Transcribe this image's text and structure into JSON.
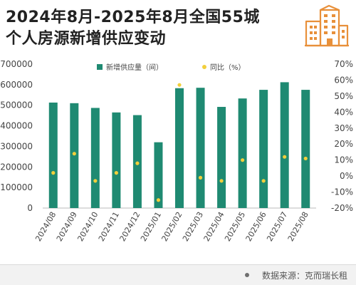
{
  "title": {
    "line1": "2024年8月-2025年8月全国55城",
    "line2": "个人房源新增供应变动"
  },
  "source": "数据来源：克而瑞长租",
  "colors": {
    "bar": "#1f8a72",
    "point": "#f2cf3c",
    "logo": "#e8903a",
    "axis_text": "#444444",
    "grid": "#dddddd"
  },
  "icons": {
    "logo": "building-icon",
    "footer": "dot-icon"
  },
  "chart_data": {
    "type": "bar",
    "categories": [
      "2024/08",
      "2024/09",
      "2024/10",
      "2024/11",
      "2024/12",
      "2025/01",
      "2025/02",
      "2025/03",
      "2025/04",
      "2025/05",
      "2025/06",
      "2025/07",
      "2025/08"
    ],
    "series": [
      {
        "name": "新增供应量（间）",
        "type": "bar",
        "axis": "left",
        "values": [
          513000,
          510000,
          487000,
          465000,
          452000,
          320000,
          583000,
          585000,
          492000,
          533000,
          575000,
          612000,
          575000
        ]
      },
      {
        "name": "同比（%）",
        "type": "scatter",
        "axis": "right",
        "values": [
          2,
          14,
          -3,
          2,
          8,
          -15,
          57,
          -1,
          -3,
          10,
          -3,
          12,
          11
        ]
      }
    ],
    "y_left": {
      "ylim": [
        0,
        700000
      ],
      "ticks": [
        "0",
        "100000",
        "200000",
        "300000",
        "400000",
        "500000",
        "600000",
        "700000"
      ]
    },
    "y_right": {
      "ylim": [
        -20,
        70
      ],
      "ticks": [
        "-20%",
        "-10%",
        "0%",
        "10%",
        "20%",
        "30%",
        "40%",
        "50%",
        "60%",
        "70%"
      ]
    },
    "grid": false,
    "legend_position": "top-center"
  }
}
